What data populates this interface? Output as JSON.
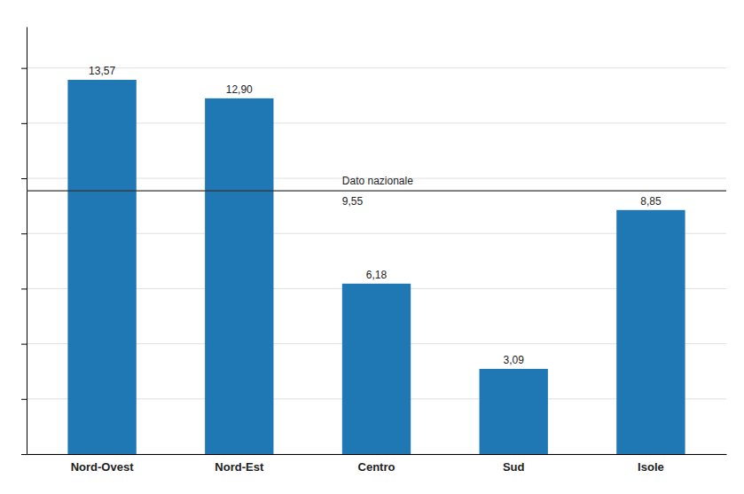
{
  "chart_data": {
    "type": "bar",
    "categories": [
      "Nord-Ovest",
      "Nord-Est",
      "Centro",
      "Sud",
      "Isole"
    ],
    "values": [
      13.57,
      12.9,
      6.18,
      3.09,
      8.85
    ],
    "value_labels": [
      "13,57",
      "12,90",
      "6,18",
      "3,09",
      "8,85"
    ],
    "data_labels": true,
    "ylim": [
      0,
      15.5
    ],
    "yticks": [
      0,
      2,
      4,
      6,
      8,
      10,
      12,
      14
    ],
    "grid": true,
    "tick_labels": "x",
    "reference_lines": [
      {
        "value": 9.55,
        "label": "Dato nazionale",
        "value_label": "9,55"
      }
    ]
  }
}
